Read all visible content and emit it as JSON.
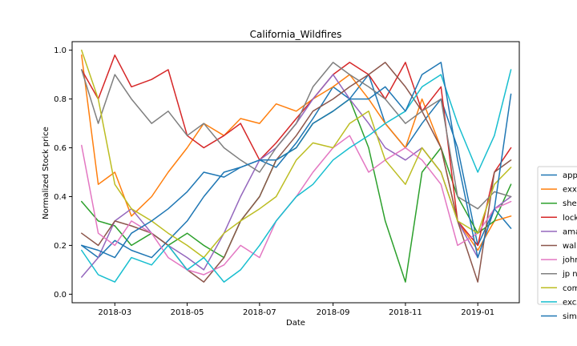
{
  "chart_data": {
    "type": "line",
    "title": "California_Wildfires",
    "xlabel": "Date",
    "ylabel": "Normalized Stock price",
    "ylim": [
      -0.035,
      1.035
    ],
    "xlim": [
      "2018-01-24",
      "2019-02-05"
    ],
    "x_ticks": [
      "2018-03-01",
      "2018-05-01",
      "2018-07-01",
      "2018-09-01",
      "2018-11-01",
      "2019-01-01"
    ],
    "x_tick_labels": [
      "2018-03",
      "2018-05",
      "2018-07",
      "2018-09",
      "2018-11",
      "2019-01"
    ],
    "y_ticks": [
      0.0,
      0.2,
      0.4,
      0.6,
      0.8,
      1.0
    ],
    "y_tick_labels": [
      "0.0",
      "0.2",
      "0.4",
      "0.6",
      "0.8",
      "1.0"
    ],
    "grid": false,
    "legend_position": "right, outside plot",
    "x": [
      "2018-02-01",
      "2018-02-15",
      "2018-03-01",
      "2018-03-15",
      "2018-04-01",
      "2018-04-15",
      "2018-05-01",
      "2018-05-15",
      "2018-06-01",
      "2018-06-15",
      "2018-07-01",
      "2018-07-15",
      "2018-08-01",
      "2018-08-15",
      "2018-09-01",
      "2018-09-15",
      "2018-10-01",
      "2018-10-15",
      "2018-11-01",
      "2018-11-15",
      "2018-12-01",
      "2018-12-15",
      "2019-01-01",
      "2019-01-15",
      "2019-01-29"
    ],
    "series": [
      {
        "name": "apple",
        "color": "#1f77b4",
        "values": [
          0.2,
          0.15,
          0.22,
          0.18,
          0.15,
          0.22,
          0.3,
          0.4,
          0.5,
          0.52,
          0.55,
          0.52,
          0.62,
          0.72,
          0.85,
          0.8,
          0.9,
          0.7,
          0.6,
          0.7,
          0.8,
          0.6,
          0.2,
          0.35,
          0.27
        ]
      },
      {
        "name": "exxon",
        "color": "#ff7f0e",
        "values": [
          0.98,
          0.45,
          0.5,
          0.32,
          0.4,
          0.5,
          0.6,
          0.7,
          0.65,
          0.72,
          0.7,
          0.78,
          0.75,
          0.8,
          0.85,
          0.9,
          0.8,
          0.7,
          0.6,
          0.8,
          0.6,
          0.3,
          0.18,
          0.3,
          0.32
        ]
      },
      {
        "name": "shell",
        "color": "#2ca02c",
        "values": [
          0.38,
          0.3,
          0.28,
          0.2,
          0.25,
          0.2,
          0.25,
          0.2,
          0.15,
          0.3,
          0.4,
          0.55,
          0.6,
          0.7,
          0.75,
          0.8,
          0.6,
          0.3,
          0.05,
          0.5,
          0.6,
          0.4,
          0.25,
          0.3,
          0.45
        ]
      },
      {
        "name": "lockheed martin",
        "color": "#d62728",
        "values": [
          0.92,
          0.8,
          0.98,
          0.85,
          0.88,
          0.92,
          0.65,
          0.6,
          0.65,
          0.7,
          0.55,
          0.62,
          0.72,
          0.8,
          0.9,
          0.95,
          0.9,
          0.8,
          0.95,
          0.75,
          0.85,
          0.3,
          0.2,
          0.5,
          0.6
        ]
      },
      {
        "name": "amazon",
        "color": "#9467bd",
        "values": [
          0.07,
          0.15,
          0.3,
          0.35,
          0.25,
          0.2,
          0.15,
          0.1,
          0.25,
          0.4,
          0.55,
          0.6,
          0.7,
          0.8,
          0.9,
          0.8,
          0.7,
          0.6,
          0.55,
          0.6,
          0.5,
          0.3,
          0.15,
          0.35,
          0.4
        ]
      },
      {
        "name": "walmart",
        "color": "#8c564b",
        "values": [
          0.25,
          0.2,
          0.3,
          0.28,
          0.25,
          0.2,
          0.1,
          0.05,
          0.15,
          0.3,
          0.4,
          0.55,
          0.65,
          0.75,
          0.8,
          0.85,
          0.9,
          0.95,
          0.85,
          0.75,
          0.6,
          0.3,
          0.05,
          0.5,
          0.55
        ]
      },
      {
        "name": "johnson & johnson",
        "color": "#e377c2",
        "values": [
          0.61,
          0.25,
          0.2,
          0.3,
          0.25,
          0.15,
          0.1,
          0.08,
          0.12,
          0.2,
          0.15,
          0.3,
          0.4,
          0.5,
          0.6,
          0.65,
          0.5,
          0.55,
          0.6,
          0.55,
          0.45,
          0.2,
          0.25,
          0.35,
          0.38
        ]
      },
      {
        "name": "jp morgan",
        "color": "#7f7f7f",
        "values": [
          0.92,
          0.7,
          0.9,
          0.8,
          0.7,
          0.75,
          0.65,
          0.7,
          0.6,
          0.55,
          0.5,
          0.6,
          0.7,
          0.85,
          0.95,
          0.9,
          0.85,
          0.8,
          0.7,
          0.75,
          0.8,
          0.4,
          0.35,
          0.42,
          0.4
        ]
      },
      {
        "name": "conocophillips",
        "color": "#bcbd22",
        "values": [
          1.0,
          0.8,
          0.45,
          0.35,
          0.3,
          0.25,
          0.2,
          0.15,
          0.25,
          0.3,
          0.35,
          0.4,
          0.55,
          0.62,
          0.6,
          0.7,
          0.75,
          0.55,
          0.45,
          0.6,
          0.5,
          0.3,
          0.25,
          0.45,
          0.52
        ]
      },
      {
        "name": "exxon mobil",
        "color": "#17becf",
        "values": [
          0.18,
          0.08,
          0.05,
          0.15,
          0.12,
          0.2,
          0.1,
          0.15,
          0.05,
          0.1,
          0.2,
          0.3,
          0.4,
          0.45,
          0.55,
          0.6,
          0.65,
          0.7,
          0.75,
          0.85,
          0.9,
          0.7,
          0.5,
          0.65,
          0.92
        ]
      },
      {
        "name": "simon property",
        "color": "#1f77b4",
        "values": [
          0.2,
          0.18,
          0.15,
          0.25,
          0.3,
          0.35,
          0.42,
          0.5,
          0.48,
          0.52,
          0.55,
          0.55,
          0.6,
          0.7,
          0.75,
          0.8,
          0.8,
          0.85,
          0.75,
          0.9,
          0.95,
          0.55,
          0.15,
          0.35,
          0.82
        ]
      }
    ]
  },
  "legend": {
    "items": [
      "app",
      "exx",
      "she",
      "lock",
      "ama",
      "wal",
      "johr",
      "jp n",
      "com",
      "exc",
      "sim"
    ]
  }
}
